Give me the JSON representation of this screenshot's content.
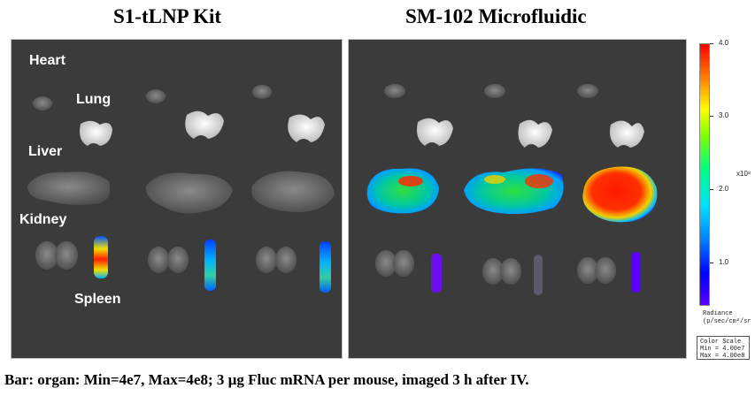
{
  "panels": {
    "left_title": "S1-tLNP Kit",
    "right_title": "SM-102 Microfluidic"
  },
  "organ_labels": {
    "heart": "Heart",
    "lung": "Lung",
    "liver": "Liver",
    "kidney": "Kidney",
    "spleen": "Spleen"
  },
  "color_scale": {
    "ticks": [
      "4.0",
      "3.0",
      "2.0",
      "1.0"
    ],
    "multiplier": "x10⁸",
    "unit_line1": "Radiance",
    "unit_line2": "(p/sec/cm²/sr",
    "box_title": "Color Scale",
    "box_min": "Min = 4.00e7",
    "box_max": "Max = 4.00e8"
  },
  "caption": "Bar: organ: Min=4e7, Max=4e8; 3 µg Fluc mRNA per mouse, imaged 3 h after IV.",
  "colors": {
    "panel_bg": "#3b3b3b",
    "organ_gray": "#6a6a6a",
    "lung_white": "#e6e6e6",
    "signal_low": "#5a00ff",
    "signal_mid": "#00d060",
    "signal_high": "#ff2000"
  }
}
